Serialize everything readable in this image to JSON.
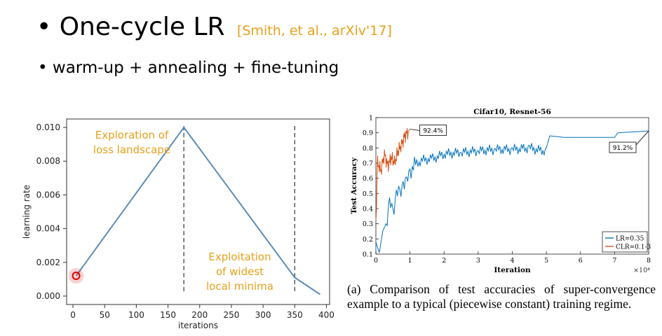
{
  "slide": {
    "bullet_symbol": "•",
    "title": "One-cycle LR",
    "citation": "[Smith, et al., arXiv'17]",
    "subtitle": "warm-up + annealing + fine-tuning"
  },
  "chart_data": [
    {
      "type": "line",
      "title": "",
      "xlabel": "iterations",
      "ylabel": "learning rate",
      "xlim": [
        -10,
        405
      ],
      "ylim": [
        -0.0005,
        0.0105
      ],
      "xticks": [
        0,
        50,
        100,
        150,
        200,
        250,
        300,
        350,
        400
      ],
      "yticks": [
        "0.000",
        "0.002",
        "0.004",
        "0.006",
        "0.008",
        "0.010"
      ],
      "series": [
        {
          "x": [
            5,
            175,
            350,
            390
          ],
          "y": [
            0.0012,
            0.01,
            0.0011,
            0.0001
          ],
          "color": "#5b8db8"
        }
      ],
      "vlines": [
        175,
        350
      ],
      "start_marker": {
        "x": 5,
        "y": 0.0012,
        "color": "#e00000"
      },
      "annotations": [
        {
          "lines": [
            "Exploration of",
            "loss landscape"
          ],
          "color": "#e8a019"
        },
        {
          "lines": [
            "Exploitation",
            "of widest",
            "local minima"
          ],
          "color": "#e8a019"
        }
      ],
      "grid": false
    },
    {
      "type": "line",
      "title": "Cifar10, Resnet-56",
      "xlabel": "Iteration",
      "ylabel": "Test Accuracy",
      "x_multiplier": "×10⁴",
      "xlim": [
        0,
        8
      ],
      "ylim": [
        0.1,
        1.0
      ],
      "xticks": [
        "0",
        "1",
        "2",
        "3",
        "4",
        "5",
        "6",
        "7",
        "8"
      ],
      "yticks": [
        "0.1",
        "0.2",
        "0.3",
        "0.4",
        "0.5",
        "0.6",
        "0.7",
        "0.8",
        "0.9",
        "1"
      ],
      "series": [
        {
          "name": "LR=0.35",
          "color": "#0072bd",
          "x": [
            0,
            0.1,
            0.2,
            0.3,
            0.4,
            0.5,
            0.6,
            0.7,
            0.8,
            0.9,
            1.0,
            1.2,
            1.4,
            1.6,
            1.8,
            2.0,
            2.5,
            3.0,
            3.5,
            4.0,
            4.5,
            4.9,
            5.0,
            5.1,
            5.5,
            6.0,
            6.5,
            7.0,
            7.1,
            7.5,
            8.0
          ],
          "y": [
            0.18,
            0.11,
            0.25,
            0.3,
            0.42,
            0.38,
            0.5,
            0.48,
            0.58,
            0.55,
            0.65,
            0.7,
            0.72,
            0.73,
            0.74,
            0.76,
            0.77,
            0.78,
            0.79,
            0.79,
            0.8,
            0.78,
            0.8,
            0.88,
            0.87,
            0.87,
            0.87,
            0.87,
            0.9,
            0.905,
            0.912
          ]
        },
        {
          "name": "CLR=0.1-3",
          "color": "#d95319",
          "x": [
            0,
            0.05,
            0.15,
            0.25,
            0.35,
            0.45,
            0.55,
            0.65,
            0.75,
            0.85,
            0.95,
            1.0
          ],
          "y": [
            0.3,
            0.7,
            0.65,
            0.76,
            0.68,
            0.74,
            0.7,
            0.78,
            0.82,
            0.88,
            0.91,
            0.924
          ]
        }
      ],
      "callouts": [
        "92.4%",
        "91.2%"
      ],
      "legend": {
        "position": "bottom-right"
      },
      "grid": false
    }
  ],
  "caption": "(a) Comparison of test accuracies of super-convergence example to a typical (piecewise constant) training regime."
}
